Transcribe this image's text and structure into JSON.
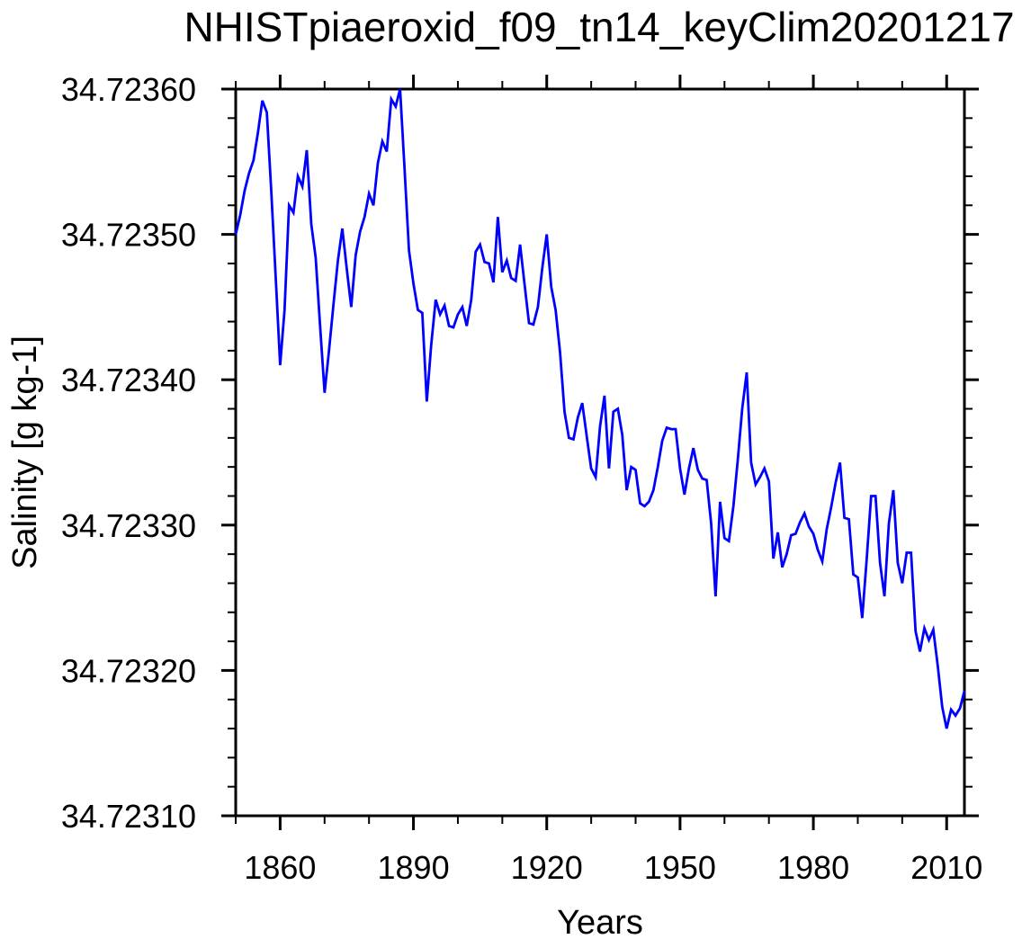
{
  "figure": {
    "title": "NHISTpiaeroxid_f09_tn14_keyClim20201217",
    "xlabel": "Years",
    "ylabel": "Salinity [g kg-1]"
  },
  "chart_data": {
    "type": "line",
    "title": "NHISTpiaeroxid_f09_tn14_keyClim20201217",
    "xlabel": "Years",
    "ylabel": "Salinity [g kg-1]",
    "legend": "none",
    "grid": false,
    "background": "#ffffff",
    "line_color": "#0000ff",
    "axis_color": "#000000",
    "xlim": [
      1850,
      2014
    ],
    "ylim": [
      34.7231,
      34.7236
    ],
    "x_major_ticks": [
      1860,
      1890,
      1920,
      1950,
      1980,
      2010
    ],
    "x_tick_labels": [
      "1860",
      "1890",
      "1920",
      "1950",
      "1980",
      "2010"
    ],
    "x_minor_ticks": [
      1850,
      1870,
      1880,
      1900,
      1910,
      1930,
      1940,
      1960,
      1970,
      1990,
      2000
    ],
    "y_major_ticks": [
      34.7236,
      34.7235,
      34.7234,
      34.7233,
      34.7232,
      34.7231
    ],
    "y_tick_labels": [
      "34.72360",
      "34.72350",
      "34.72340",
      "34.72330",
      "34.72320",
      "34.72310"
    ],
    "y_minor_step": 2e-05,
    "x": [
      1850,
      1851,
      1852,
      1853,
      1854,
      1855,
      1856,
      1857,
      1858,
      1859,
      1860,
      1861,
      1862,
      1863,
      1864,
      1865,
      1866,
      1867,
      1868,
      1869,
      1870,
      1871,
      1872,
      1873,
      1874,
      1875,
      1876,
      1877,
      1878,
      1879,
      1880,
      1881,
      1882,
      1883,
      1884,
      1885,
      1886,
      1887,
      1888,
      1889,
      1890,
      1891,
      1892,
      1893,
      1894,
      1895,
      1896,
      1897,
      1898,
      1899,
      1900,
      1901,
      1902,
      1903,
      1904,
      1905,
      1906,
      1907,
      1908,
      1909,
      1910,
      1911,
      1912,
      1913,
      1914,
      1915,
      1916,
      1917,
      1918,
      1919,
      1920,
      1921,
      1922,
      1923,
      1924,
      1925,
      1926,
      1927,
      1928,
      1929,
      1930,
      1931,
      1932,
      1933,
      1934,
      1935,
      1936,
      1937,
      1938,
      1939,
      1940,
      1941,
      1942,
      1943,
      1944,
      1945,
      1946,
      1947,
      1948,
      1949,
      1950,
      1951,
      1952,
      1953,
      1954,
      1955,
      1956,
      1957,
      1958,
      1959,
      1960,
      1961,
      1962,
      1963,
      1964,
      1965,
      1966,
      1967,
      1968,
      1969,
      1970,
      1971,
      1972,
      1973,
      1974,
      1975,
      1976,
      1977,
      1978,
      1979,
      1980,
      1981,
      1982,
      1983,
      1984,
      1985,
      1986,
      1987,
      1988,
      1989,
      1990,
      1991,
      1992,
      1993,
      1994,
      1995,
      1996,
      1997,
      1998,
      1999,
      2000,
      2001,
      2002,
      2003,
      2004,
      2005,
      2006,
      2007,
      2008,
      2009,
      2010,
      2011,
      2012,
      2013,
      2014
    ],
    "series": [
      {
        "name": "Salinity",
        "values": [
          34.7235,
          34.723513,
          34.72353,
          34.723542,
          34.723551,
          34.72357,
          34.723592,
          34.723584,
          34.72353,
          34.72347,
          34.72341,
          34.723448,
          34.72352,
          34.723515,
          34.72354,
          34.723533,
          34.723558,
          34.723507,
          34.723484,
          34.723437,
          34.723391,
          34.72342,
          34.723452,
          34.723482,
          34.723504,
          34.723476,
          34.72345,
          34.723486,
          34.723502,
          34.723512,
          34.723528,
          34.72352,
          34.723549,
          34.723564,
          34.723557,
          34.723593,
          34.723588,
          34.7236,
          34.723545,
          34.723489,
          34.723466,
          34.723448,
          34.723446,
          34.723385,
          34.723424,
          34.723455,
          34.723445,
          34.723451,
          34.723437,
          34.723436,
          34.723445,
          34.72345,
          34.723437,
          34.723455,
          34.723488,
          34.723493,
          34.723481,
          34.72348,
          34.723467,
          34.723512,
          34.723474,
          34.723482,
          34.72347,
          34.723468,
          34.723493,
          34.723466,
          34.723439,
          34.723438,
          34.72345,
          34.723477,
          34.7235,
          34.723464,
          34.723448,
          34.723419,
          34.723378,
          34.72336,
          34.723359,
          34.723374,
          34.723384,
          34.723361,
          34.723339,
          34.723333,
          34.723368,
          34.723389,
          34.723339,
          34.723378,
          34.72338,
          34.723362,
          34.723324,
          34.72334,
          34.723338,
          34.723315,
          34.723313,
          34.723316,
          34.723324,
          34.72334,
          34.723358,
          34.723367,
          34.723366,
          34.723366,
          34.723339,
          34.723321,
          34.723339,
          34.723353,
          34.723338,
          34.723332,
          34.723331,
          34.723301,
          34.723251,
          34.723316,
          34.723291,
          34.723289,
          34.723313,
          34.723345,
          34.72338,
          34.723405,
          34.723343,
          34.723328,
          34.723333,
          34.723339,
          34.72333,
          34.723277,
          34.723295,
          34.723271,
          34.72328,
          34.723293,
          34.723294,
          34.723302,
          34.723308,
          34.723299,
          34.723294,
          34.723283,
          34.723275,
          34.723297,
          34.723312,
          34.723329,
          34.723343,
          34.723305,
          34.723304,
          34.723266,
          34.723264,
          34.723236,
          34.723276,
          34.72332,
          34.72332,
          34.723274,
          34.723251,
          34.723301,
          34.723324,
          34.723274,
          34.72326,
          34.723281,
          34.723281,
          34.723227,
          34.723213,
          34.723229,
          34.723221,
          34.723228,
          34.723203,
          34.723175,
          34.72316,
          34.723173,
          34.723169,
          34.723174,
          34.723186
        ]
      }
    ]
  }
}
